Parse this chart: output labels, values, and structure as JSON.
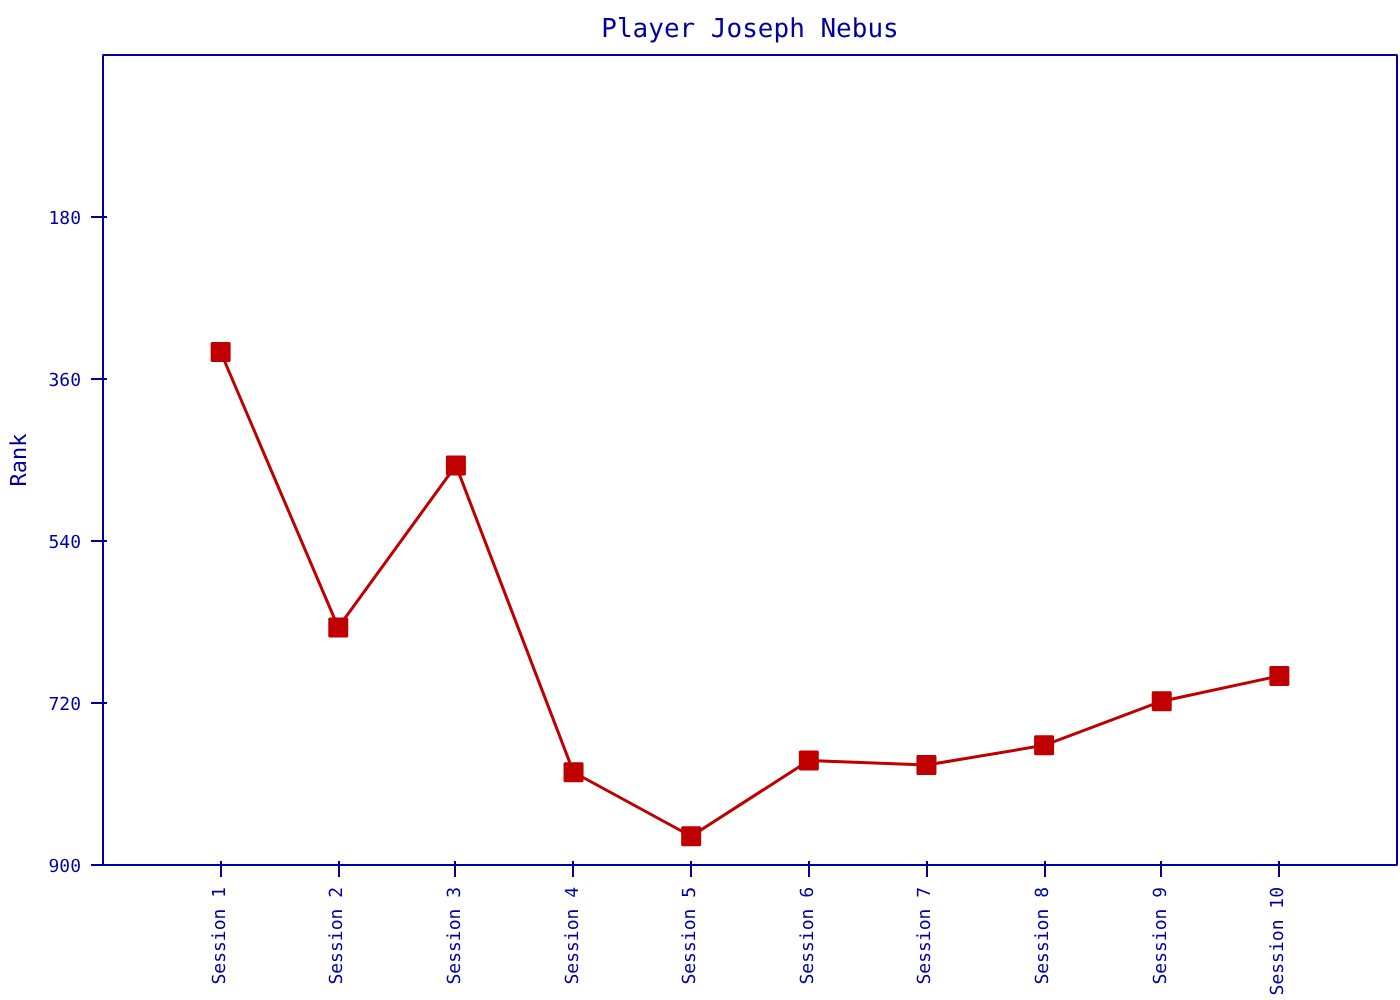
{
  "chart_data": {
    "type": "line",
    "title": "Player Joseph Nebus",
    "ylabel": "Rank",
    "categories": [
      "Session 1",
      "Session 2",
      "Session 3",
      "Session 4",
      "Session 5",
      "Session 6",
      "Session 7",
      "Session 8",
      "Session 9",
      "Session 10"
    ],
    "series": [
      {
        "color": "#c00000",
        "values": [
          330,
          636,
          456,
          797,
          868,
          784,
          789,
          767,
          718,
          690
        ]
      }
    ],
    "ylim": [
      900,
      0
    ],
    "yticks": [
      180,
      360,
      540,
      720,
      900
    ],
    "grid": false,
    "marker": "square",
    "line_style": "solid"
  }
}
